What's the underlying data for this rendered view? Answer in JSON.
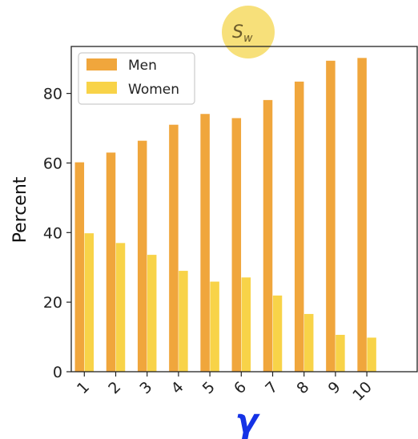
{
  "chart_data": {
    "type": "bar",
    "title_symbol": "S",
    "title_subscript": "w",
    "xlabel": "γ",
    "ylabel": "Percent",
    "categories": [
      "1",
      "2",
      "3",
      "4",
      "5",
      "6",
      "7",
      "8",
      "9",
      "10"
    ],
    "series": [
      {
        "name": "Men",
        "color": "#f0a63c",
        "values": [
          60.2,
          63.0,
          66.4,
          71.0,
          74.1,
          72.9,
          78.1,
          83.4,
          89.4,
          90.2
        ]
      },
      {
        "name": "Women",
        "color": "#f8d348",
        "values": [
          39.8,
          37.0,
          33.6,
          29.0,
          25.9,
          27.1,
          21.9,
          16.6,
          10.6,
          9.8
        ]
      }
    ],
    "ylim": [
      0,
      93.5
    ],
    "yticks": [
      0,
      20,
      40,
      60,
      80
    ],
    "legend_position": "top-left",
    "grid": false,
    "title_highlight_color": "#f7e07a"
  }
}
